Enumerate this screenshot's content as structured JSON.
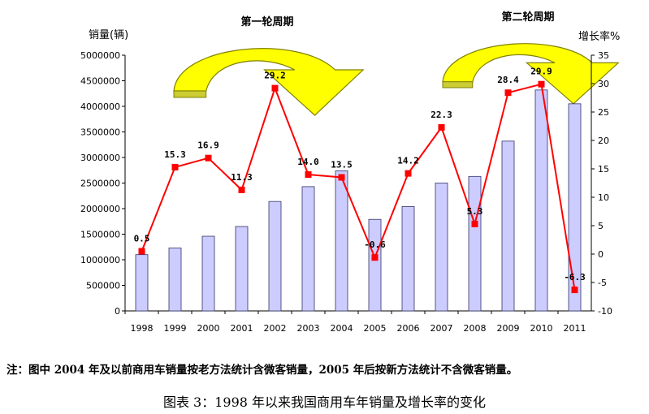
{
  "chart_data": {
    "type": "bar+line",
    "categories": [
      "1998",
      "1999",
      "2000",
      "2001",
      "2002",
      "2003",
      "2004",
      "2005",
      "2006",
      "2007",
      "2008",
      "2009",
      "2010",
      "2011"
    ],
    "series": [
      {
        "name": "",
        "type": "bar",
        "axis": "left",
        "values": [
          1100000,
          1230000,
          1460000,
          1650000,
          2140000,
          2430000,
          2740000,
          1790000,
          2040000,
          2500000,
          2630000,
          3320000,
          4320000,
          4050000
        ]
      },
      {
        "name": "",
        "type": "line",
        "axis": "right",
        "values": [
          0.5,
          15.3,
          16.9,
          11.3,
          29.2,
          14.0,
          13.5,
          -0.6,
          14.2,
          22.3,
          5.3,
          28.4,
          29.9,
          -6.3
        ],
        "labels": [
          "0.5",
          "15.3",
          "16.9",
          "11.3",
          "29.2",
          "14.0",
          "13.5",
          "-0.6",
          "14.2",
          "22.3",
          "5.3",
          "28.4",
          "29.9",
          "-6.3"
        ]
      }
    ],
    "ylabel": "销量(辆)",
    "y2label": "增长率%",
    "ylim": [
      0,
      5000000
    ],
    "y2lim": [
      -10,
      35
    ],
    "yticks": [
      "5000000",
      "4500000",
      "4000000",
      "3500000",
      "3000000",
      "2500000",
      "2000000",
      "1500000",
      "1000000",
      "500000",
      "0"
    ],
    "y2ticks": [
      "35",
      "30",
      "25",
      "20",
      "15",
      "10",
      "5",
      "0",
      "-5",
      "-10"
    ],
    "annotations": [
      "第一轮周期",
      "第二轮周期"
    ],
    "colors": {
      "bar_fill": "#ccccff",
      "bar_stroke": "#333366",
      "line": "#ff0000",
      "arrow_fill": "#ffff00",
      "arrow_shade": "#cccc33"
    },
    "grid": false,
    "legend": "none"
  },
  "note": "注：图中 2004 年及以前商用车销量按老方法统计含微客销量，2005 年后按新方法统计不含微客销量。",
  "caption": "图表 3：1998 年以来我国商用车年销量及增长率的变化"
}
